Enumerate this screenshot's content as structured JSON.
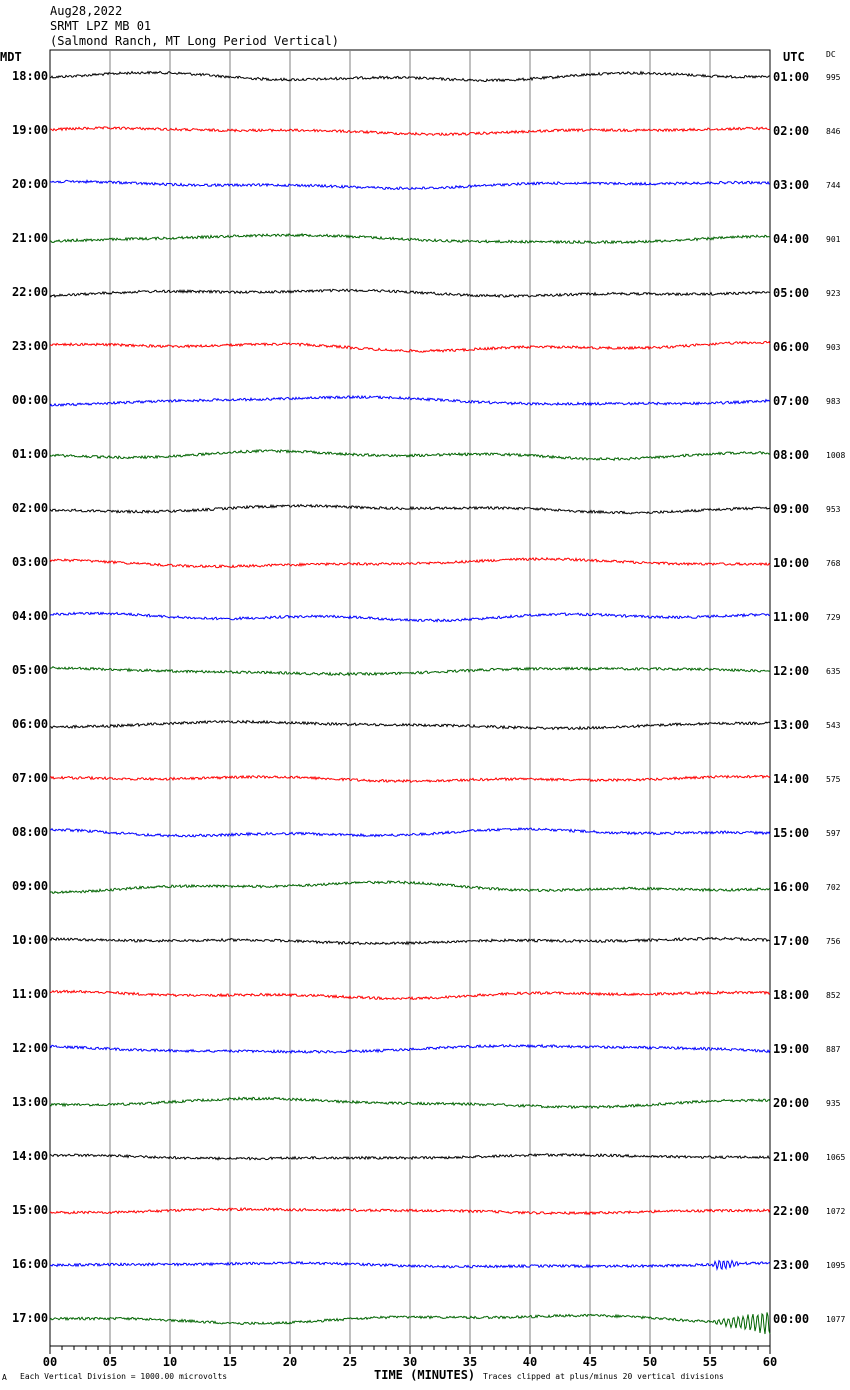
{
  "header": {
    "date": "Aug28,2022",
    "station": "SRMT LPZ MB 01",
    "description": "(Salmond Ranch, MT Long Period Vertical)"
  },
  "left_zone": "MDT",
  "right_zone": "UTC",
  "dc_label": "DC",
  "footer": {
    "left_mark": "A",
    "scale_note": "Each Vertical Division = 1000.00 microvolts",
    "xlabel": "TIME (MINUTES)",
    "clip_note": "Traces clipped at plus/minus 20 vertical divisions"
  },
  "colors": {
    "black": "#000000",
    "red": "#ff0000",
    "blue": "#0000ff",
    "green": "#006400",
    "grid": "#808080"
  },
  "chart_data": {
    "type": "line",
    "xlim": [
      0,
      60
    ],
    "x_ticks": [
      "00",
      "05",
      "10",
      "15",
      "20",
      "25",
      "30",
      "35",
      "40",
      "45",
      "50",
      "55",
      "60"
    ],
    "rows": [
      {
        "left": "18:00",
        "right": "01:00",
        "dc": "995",
        "color": "black"
      },
      {
        "left": "19:00",
        "right": "02:00",
        "dc": "846",
        "color": "red"
      },
      {
        "left": "20:00",
        "right": "03:00",
        "dc": "744",
        "color": "blue"
      },
      {
        "left": "21:00",
        "right": "04:00",
        "dc": "901",
        "color": "green"
      },
      {
        "left": "22:00",
        "right": "05:00",
        "dc": "923",
        "color": "black"
      },
      {
        "left": "23:00",
        "right": "06:00",
        "dc": "903",
        "color": "red"
      },
      {
        "left": "00:00",
        "right": "07:00",
        "dc": "983",
        "color": "blue"
      },
      {
        "left": "01:00",
        "right": "08:00",
        "dc": "1008",
        "color": "green"
      },
      {
        "left": "02:00",
        "right": "09:00",
        "dc": "953",
        "color": "black"
      },
      {
        "left": "03:00",
        "right": "10:00",
        "dc": "768",
        "color": "red"
      },
      {
        "left": "04:00",
        "right": "11:00",
        "dc": "729",
        "color": "blue"
      },
      {
        "left": "05:00",
        "right": "12:00",
        "dc": "635",
        "color": "green"
      },
      {
        "left": "06:00",
        "right": "13:00",
        "dc": "543",
        "color": "black"
      },
      {
        "left": "07:00",
        "right": "14:00",
        "dc": "575",
        "color": "red"
      },
      {
        "left": "08:00",
        "right": "15:00",
        "dc": "597",
        "color": "blue"
      },
      {
        "left": "09:00",
        "right": "16:00",
        "dc": "702",
        "color": "green"
      },
      {
        "left": "10:00",
        "right": "17:00",
        "dc": "756",
        "color": "black"
      },
      {
        "left": "11:00",
        "right": "18:00",
        "dc": "852",
        "color": "red"
      },
      {
        "left": "12:00",
        "right": "19:00",
        "dc": "887",
        "color": "blue"
      },
      {
        "left": "13:00",
        "right": "20:00",
        "dc": "935",
        "color": "green"
      },
      {
        "left": "14:00",
        "right": "21:00",
        "dc": "1065",
        "color": "black"
      },
      {
        "left": "15:00",
        "right": "22:00",
        "dc": "1072",
        "color": "red"
      },
      {
        "left": "16:00",
        "right": "23:00",
        "dc": "1095",
        "color": "blue"
      },
      {
        "left": "17:00",
        "right": "00:00",
        "dc": "1077",
        "color": "green"
      }
    ]
  }
}
